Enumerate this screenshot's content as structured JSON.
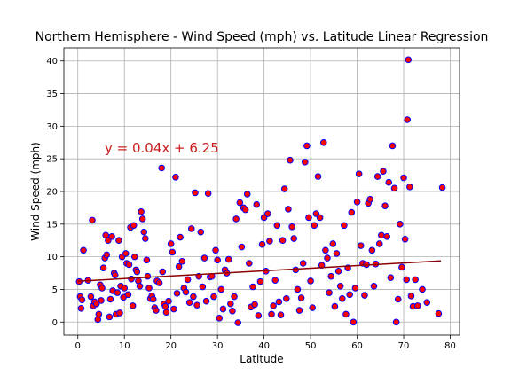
{
  "chart_data": {
    "type": "scatter",
    "title": "Northern Hemisphere - Wind Speed (mph) vs. Latitude Linear Regression",
    "xlabel": "Latitude",
    "ylabel": "Wind Speed (mph)",
    "xlim": [
      -3,
      82
    ],
    "ylim": [
      -2,
      42
    ],
    "xticks": [
      0,
      10,
      20,
      30,
      40,
      50,
      60,
      70,
      80
    ],
    "yticks": [
      0,
      5,
      10,
      15,
      20,
      25,
      30,
      35,
      40
    ],
    "grid": true,
    "annotation": "y = 0.04x + 6.25",
    "regression": {
      "slope": 0.04,
      "intercept": 6.25,
      "x_range": [
        0,
        78
      ]
    },
    "colors": {
      "marker_fill": "#ff0000",
      "marker_edge": "#0000ff",
      "regression_line": "#8b0000",
      "annotation": "#c81e1e"
    },
    "series": [
      {
        "points": [
          [
            0.3,
            6.2
          ],
          [
            0.5,
            3.9
          ],
          [
            0.7,
            2.1
          ],
          [
            0.9,
            3.4
          ],
          [
            1.2,
            11.0
          ],
          [
            2.2,
            6.4
          ],
          [
            2.8,
            3.9
          ],
          [
            3.1,
            15.6
          ],
          [
            3.3,
            2.5
          ],
          [
            3.6,
            3.1
          ],
          [
            4.0,
            2.8
          ],
          [
            4.3,
            0.4
          ],
          [
            4.5,
            1.2
          ],
          [
            4.8,
            5.7
          ],
          [
            5.0,
            3.3
          ],
          [
            5.2,
            5.2
          ],
          [
            5.5,
            8.3
          ],
          [
            5.8,
            9.8
          ],
          [
            6.0,
            13.3
          ],
          [
            6.2,
            10.3
          ],
          [
            6.5,
            12.5
          ],
          [
            6.8,
            0.8
          ],
          [
            7.0,
            3.5
          ],
          [
            7.3,
            13.1
          ],
          [
            7.5,
            4.8
          ],
          [
            7.8,
            7.5
          ],
          [
            8.0,
            7.2
          ],
          [
            8.2,
            1.2
          ],
          [
            8.5,
            4.5
          ],
          [
            8.8,
            12.5
          ],
          [
            9.0,
            1.4
          ],
          [
            9.2,
            5.5
          ],
          [
            9.5,
            10.0
          ],
          [
            9.8,
            3.8
          ],
          [
            10.0,
            5.2
          ],
          [
            10.3,
            10.5
          ],
          [
            10.5,
            9.0
          ],
          [
            10.8,
            4.2
          ],
          [
            11.0,
            8.8
          ],
          [
            11.3,
            14.5
          ],
          [
            11.5,
            6.6
          ],
          [
            11.8,
            2.5
          ],
          [
            12.0,
            14.8
          ],
          [
            12.2,
            10.0
          ],
          [
            12.5,
            8.0
          ],
          [
            12.7,
            7.7
          ],
          [
            13.0,
            6.3
          ],
          [
            13.3,
            5.5
          ],
          [
            13.6,
            16.9
          ],
          [
            13.9,
            15.8
          ],
          [
            14.2,
            13.8
          ],
          [
            14.5,
            12.8
          ],
          [
            14.8,
            9.5
          ],
          [
            15.0,
            7.0
          ],
          [
            15.3,
            5.2
          ],
          [
            15.6,
            3.6
          ],
          [
            15.9,
            4.0
          ],
          [
            16.2,
            3.5
          ],
          [
            16.5,
            2.2
          ],
          [
            16.8,
            1.8
          ],
          [
            17.0,
            6.3
          ],
          [
            17.5,
            6.0
          ],
          [
            18.0,
            23.6
          ],
          [
            18.2,
            7.7
          ],
          [
            18.5,
            2.8
          ],
          [
            18.8,
            2.4
          ],
          [
            19.0,
            1.5
          ],
          [
            19.5,
            3.2
          ],
          [
            20.0,
            12.0
          ],
          [
            20.3,
            10.7
          ],
          [
            20.6,
            2.0
          ],
          [
            21.0,
            22.2
          ],
          [
            21.3,
            4.4
          ],
          [
            21.7,
            8.5
          ],
          [
            22.0,
            13.0
          ],
          [
            22.4,
            9.3
          ],
          [
            22.8,
            5.2
          ],
          [
            23.2,
            4.6
          ],
          [
            23.6,
            6.5
          ],
          [
            24.0,
            3.0
          ],
          [
            24.4,
            14.3
          ],
          [
            24.8,
            3.9
          ],
          [
            25.2,
            19.8
          ],
          [
            25.6,
            2.6
          ],
          [
            26.0,
            7.0
          ],
          [
            26.4,
            13.8
          ],
          [
            26.8,
            5.4
          ],
          [
            27.2,
            9.8
          ],
          [
            27.6,
            3.2
          ],
          [
            28.0,
            19.7
          ],
          [
            28.4,
            6.9
          ],
          [
            28.8,
            7.0
          ],
          [
            29.2,
            3.9
          ],
          [
            29.6,
            11.0
          ],
          [
            30.0,
            9.5
          ],
          [
            30.4,
            0.6
          ],
          [
            30.8,
            5.0
          ],
          [
            31.2,
            2.0
          ],
          [
            31.6,
            8.0
          ],
          [
            32.0,
            7.5
          ],
          [
            32.4,
            9.6
          ],
          [
            32.8,
            2.8
          ],
          [
            33.2,
            1.7
          ],
          [
            33.6,
            3.9
          ],
          [
            34.0,
            15.8
          ],
          [
            34.4,
            -0.1
          ],
          [
            34.8,
            18.3
          ],
          [
            35.2,
            11.5
          ],
          [
            35.6,
            17.5
          ],
          [
            36.0,
            17.2
          ],
          [
            36.4,
            19.6
          ],
          [
            36.8,
            9.0
          ],
          [
            37.2,
            2.3
          ],
          [
            37.6,
            5.4
          ],
          [
            38.0,
            2.7
          ],
          [
            38.4,
            18.0
          ],
          [
            38.8,
            1.0
          ],
          [
            39.2,
            6.2
          ],
          [
            39.6,
            11.9
          ],
          [
            40.0,
            16.0
          ],
          [
            40.4,
            7.8
          ],
          [
            40.8,
            16.6
          ],
          [
            41.2,
            12.4
          ],
          [
            41.6,
            1.2
          ],
          [
            42.0,
            2.5
          ],
          [
            42.4,
            6.4
          ],
          [
            42.8,
            14.8
          ],
          [
            43.2,
            3.1
          ],
          [
            43.6,
            1.1
          ],
          [
            44.0,
            12.5
          ],
          [
            44.4,
            20.4
          ],
          [
            44.8,
            3.6
          ],
          [
            45.2,
            17.3
          ],
          [
            45.6,
            24.8
          ],
          [
            46.0,
            14.6
          ],
          [
            46.4,
            12.8
          ],
          [
            46.8,
            8.0
          ],
          [
            47.2,
            5.0
          ],
          [
            47.6,
            1.8
          ],
          [
            48.0,
            3.7
          ],
          [
            48.4,
            9.0
          ],
          [
            48.8,
            24.5
          ],
          [
            49.2,
            27.0
          ],
          [
            49.6,
            16.0
          ],
          [
            50.0,
            6.3
          ],
          [
            50.4,
            2.2
          ],
          [
            50.8,
            14.8
          ],
          [
            51.2,
            16.6
          ],
          [
            51.6,
            22.3
          ],
          [
            52.0,
            16.0
          ],
          [
            52.4,
            8.7
          ],
          [
            52.8,
            27.5
          ],
          [
            53.2,
            11.0
          ],
          [
            53.6,
            9.8
          ],
          [
            54.0,
            4.5
          ],
          [
            54.4,
            7.0
          ],
          [
            54.8,
            12.0
          ],
          [
            55.2,
            2.4
          ],
          [
            55.6,
            10.5
          ],
          [
            56.0,
            7.8
          ],
          [
            56.4,
            5.5
          ],
          [
            56.8,
            3.6
          ],
          [
            57.2,
            14.8
          ],
          [
            57.6,
            1.2
          ],
          [
            58.0,
            8.3
          ],
          [
            58.4,
            4.2
          ],
          [
            58.8,
            16.8
          ],
          [
            59.2,
            0.0
          ],
          [
            59.6,
            5.2
          ],
          [
            60.0,
            18.4
          ],
          [
            60.4,
            22.7
          ],
          [
            60.8,
            11.7
          ],
          [
            61.2,
            9.0
          ],
          [
            61.6,
            4.1
          ],
          [
            62.0,
            8.8
          ],
          [
            62.4,
            18.2
          ],
          [
            62.8,
            18.8
          ],
          [
            63.2,
            11.0
          ],
          [
            63.6,
            5.5
          ],
          [
            64.0,
            8.9
          ],
          [
            64.4,
            22.3
          ],
          [
            64.8,
            12.0
          ],
          [
            65.2,
            13.3
          ],
          [
            65.6,
            23.1
          ],
          [
            66.0,
            17.8
          ],
          [
            66.4,
            13.1
          ],
          [
            66.8,
            21.4
          ],
          [
            67.2,
            6.8
          ],
          [
            67.6,
            27.0
          ],
          [
            68.0,
            20.5
          ],
          [
            68.4,
            0.0
          ],
          [
            68.8,
            3.5
          ],
          [
            69.2,
            15.0
          ],
          [
            69.6,
            8.4
          ],
          [
            70.0,
            22.1
          ],
          [
            70.3,
            12.7
          ],
          [
            70.6,
            6.5
          ],
          [
            70.8,
            31.0
          ],
          [
            71.0,
            40.2
          ],
          [
            71.3,
            20.7
          ],
          [
            71.6,
            4.0
          ],
          [
            72.0,
            2.4
          ],
          [
            72.5,
            6.5
          ],
          [
            73.0,
            2.5
          ],
          [
            74.0,
            5.0
          ],
          [
            75.0,
            3.0
          ],
          [
            77.5,
            1.3
          ],
          [
            78.3,
            20.6
          ]
        ]
      }
    ]
  }
}
